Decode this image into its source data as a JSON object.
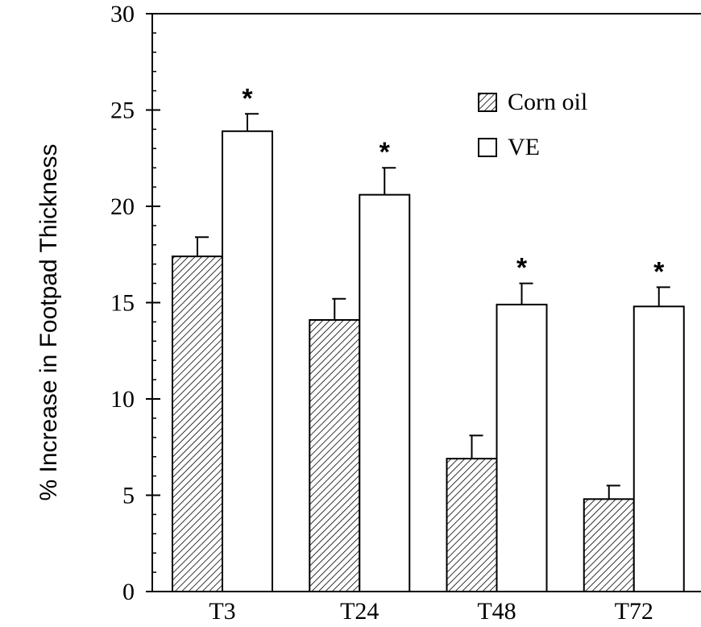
{
  "chart_data": {
    "type": "bar",
    "title": "",
    "xlabel": "",
    "ylabel": "% Increase in Footpad Thickness",
    "ylim": [
      0,
      30
    ],
    "yticks": [
      0,
      5,
      10,
      15,
      20,
      25,
      30
    ],
    "categories": [
      "T3",
      "T24",
      "T48",
      "T72"
    ],
    "series": [
      {
        "name": "Corn oil",
        "pattern": "hatched",
        "values": [
          17.4,
          14.1,
          6.9,
          4.8
        ],
        "errors": [
          1.0,
          1.1,
          1.2,
          0.7
        ]
      },
      {
        "name": "VE",
        "pattern": "open",
        "values": [
          23.9,
          20.6,
          14.9,
          14.8
        ],
        "errors": [
          0.9,
          1.4,
          1.1,
          1.0
        ]
      }
    ],
    "annotations": [
      {
        "category": "T3",
        "series": "VE",
        "text": "*"
      },
      {
        "category": "T24",
        "series": "VE",
        "text": "*"
      },
      {
        "category": "T48",
        "series": "VE",
        "text": "*"
      },
      {
        "category": "T72",
        "series": "VE",
        "text": "*"
      }
    ],
    "legend_position": "top-right",
    "grid": false,
    "colors": {
      "line": "#000000",
      "background": "#ffffff"
    }
  }
}
